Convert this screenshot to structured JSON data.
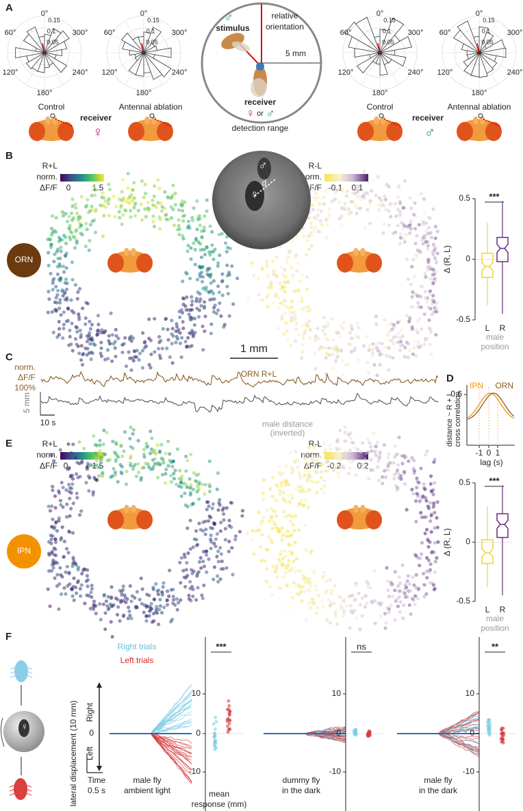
{
  "panel_a": {
    "label": "A",
    "polar": {
      "angles": [
        "0°",
        "60°",
        "300°",
        "120°",
        "240°",
        "180°"
      ],
      "radii": [
        "0.15",
        "0.1",
        "0.05"
      ]
    },
    "female": {
      "conditions": [
        "Control",
        "Antennal ablation"
      ],
      "receiver": "receiver",
      "sex": "♀"
    },
    "male": {
      "conditions": [
        "Control",
        "Antennal ablation"
      ],
      "receiver": "receiver",
      "sex": "♂"
    },
    "inset": {
      "stimulus_sex": "♂",
      "stimulus": "stimulus",
      "relative_orientation": [
        "relative",
        "orientation"
      ],
      "range_scale": "5 mm",
      "receiver": "receiver",
      "receiver_sexes": [
        "♀",
        "or",
        "♂"
      ],
      "caption": "detection range"
    }
  },
  "panel_b": {
    "label": "B",
    "sum_colorbar": {
      "title": [
        "R+L",
        "norm.",
        "ΔF/F"
      ],
      "ticks": [
        "0",
        "1.5"
      ]
    },
    "photo": {
      "male": "♂",
      "distance": "d",
      "female": "♀"
    },
    "diff_colorbar": {
      "title": [
        "R-L",
        "norm.",
        "ΔF/F"
      ],
      "ticks": [
        "-0.1",
        "0.1"
      ]
    },
    "neuron": "ORN",
    "boxplot": {
      "yticks": [
        "0.5",
        "0",
        "-0.5"
      ],
      "ylabel": "Δ (R, L)",
      "significance": "***",
      "categories": [
        "L",
        "R"
      ],
      "xlabel": [
        "male",
        "position"
      ]
    },
    "scale": "1 mm"
  },
  "panel_c": {
    "label": "C",
    "scale_label": [
      "norm.",
      "ΔF/F",
      "100%"
    ],
    "trace": "ORN R+L",
    "distance_scale": "5 mm",
    "time_scale": "10 s",
    "distance_label": [
      "male distance",
      "(inverted)"
    ]
  },
  "panel_d": {
    "label": "D",
    "legend": [
      "IPN",
      "ORN"
    ],
    "ytick": "0.6",
    "ylabel": [
      "distance ~ R + L",
      "cross correlation"
    ],
    "xticks": [
      "-1",
      "0",
      "1"
    ],
    "xlabel": "lag (s)"
  },
  "panel_e": {
    "label": "E",
    "sum_colorbar": {
      "title": [
        "R+L",
        "norm.",
        "ΔF/F"
      ],
      "ticks": [
        "0",
        "1.5"
      ]
    },
    "diff_colorbar": {
      "title": [
        "R-L",
        "norm.",
        "ΔF/F"
      ],
      "ticks": [
        "-0.2",
        "0.2"
      ]
    },
    "neuron": "IPN",
    "boxplot": {
      "yticks": [
        "0.5",
        "0",
        "-0.5"
      ],
      "ylabel": "Δ (R, L)",
      "significance": "***",
      "categories": [
        "L",
        "R"
      ],
      "xlabel": [
        "male",
        "position"
      ]
    }
  },
  "panel_f": {
    "label": "F",
    "legend": [
      "Right trials",
      "Left trials"
    ],
    "direction": [
      "Right",
      "0",
      "Left"
    ],
    "ylabel": "lateral displacement (10 mm)",
    "time_scale": [
      "Time",
      "0.5 s"
    ],
    "yticks": [
      "10",
      "0",
      "-10"
    ],
    "mean_label": [
      "mean",
      "response (mm)"
    ],
    "conditions": [
      {
        "caption": [
          "male fly",
          "ambient light"
        ],
        "significance": "***"
      },
      {
        "caption": [
          "dummy fly",
          "in the dark"
        ],
        "significance": "ns"
      },
      {
        "caption": [
          "male fly",
          "in the dark"
        ],
        "significance": "**"
      }
    ]
  }
}
